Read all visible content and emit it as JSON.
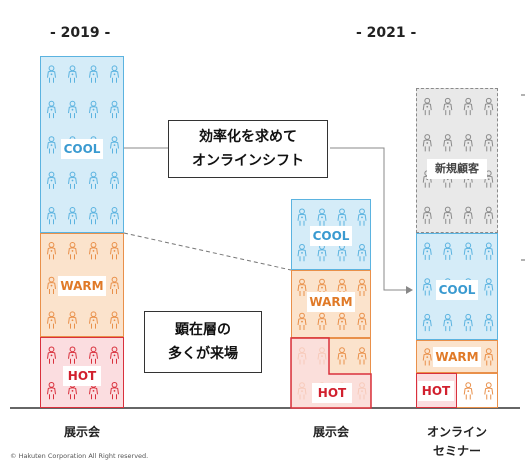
{
  "years": {
    "left": "- 2019 -",
    "right": "- 2021 -"
  },
  "segments": {
    "cool": "COOL",
    "warm": "WARM",
    "hot": "HOT",
    "new_customers": "新規顧客"
  },
  "callouts": {
    "shift_line1": "効率化を求めて",
    "shift_line2": "オンラインシフト",
    "revealed_line1": "顕在層の",
    "revealed_line2": "多くが来場"
  },
  "x_labels": {
    "exhibition_2019": "展示会",
    "exhibition_2021": "展示会",
    "online_line1": "オンライン",
    "online_line2": "セミナー"
  },
  "copyright": "© Hakuten Corporation All Right reserved.",
  "colors": {
    "cool_fill": "#d5ecf8",
    "cool_border": "#5bb3e0",
    "cool_text": "#3a9ad0",
    "warm_fill": "#fbe3cc",
    "warm_border": "#e9904a",
    "warm_text": "#e07a28",
    "hot_fill": "#fbdde0",
    "hot_border": "#d9313d",
    "hot_text": "#d1202e",
    "new_fill": "#e9e9e9",
    "new_border": "#8a8a8a",
    "new_text": "#444"
  }
}
